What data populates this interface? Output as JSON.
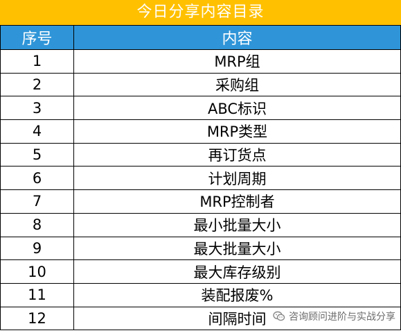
{
  "title": "今日分享内容目录",
  "header": {
    "index_label": "序号",
    "content_label": "内容"
  },
  "rows": [
    {
      "index": "1",
      "content": "MRP组"
    },
    {
      "index": "2",
      "content": "采购组"
    },
    {
      "index": "3",
      "content": "ABC标识"
    },
    {
      "index": "4",
      "content": "MRP类型"
    },
    {
      "index": "5",
      "content": "再订货点"
    },
    {
      "index": "6",
      "content": "计划周期"
    },
    {
      "index": "7",
      "content": "MRP控制者"
    },
    {
      "index": "8",
      "content": "最小批量大小"
    },
    {
      "index": "9",
      "content": "最大批量大小"
    },
    {
      "index": "10",
      "content": "最大库存级别"
    },
    {
      "index": "11",
      "content": "装配报废%"
    },
    {
      "index": "12",
      "content": "间隔时间"
    }
  ],
  "watermark": {
    "text": "咨询顾问进阶与实战分享",
    "icon": "wechat-icon"
  },
  "colors": {
    "title_bg": "#ffc000",
    "header_bg": "#2f95d8",
    "text": "#000000",
    "border": "#000000"
  }
}
